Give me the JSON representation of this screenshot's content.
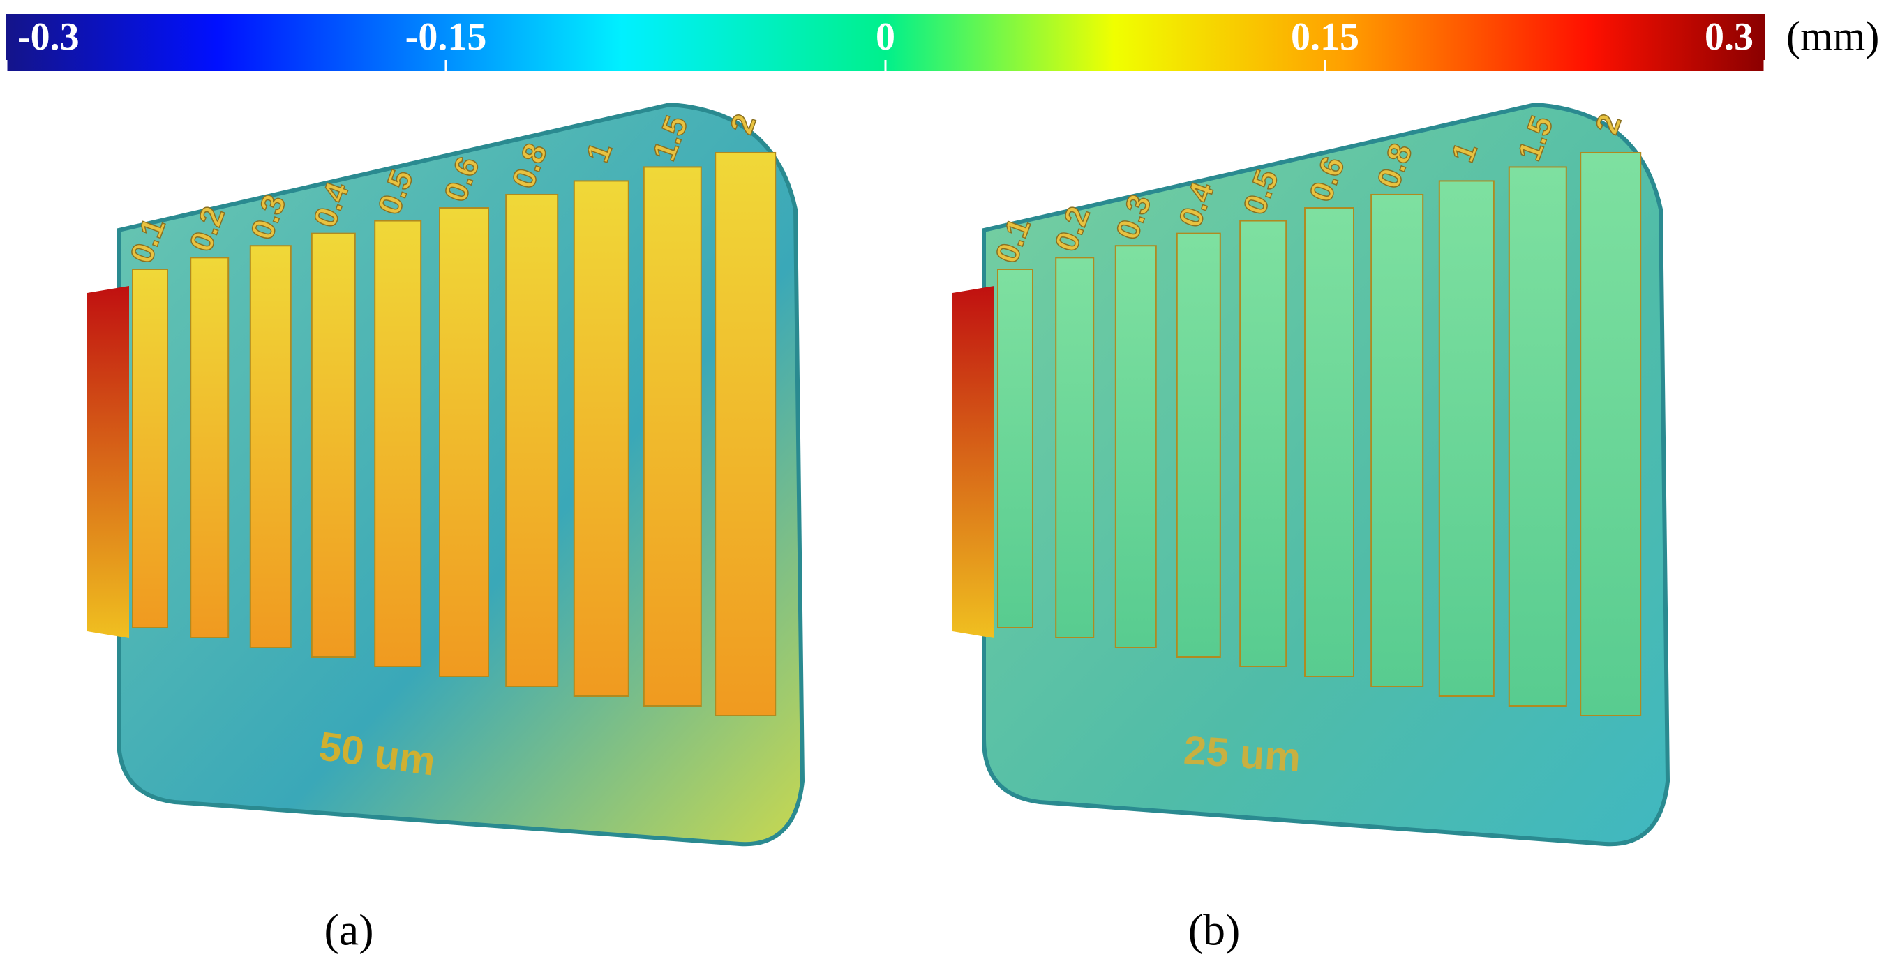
{
  "colorbar": {
    "ticks": [
      -0.3,
      -0.15,
      0,
      0.15,
      0.3
    ],
    "unit": "(mm)"
  },
  "panels": [
    {
      "label": "(a)",
      "caption": "50 um",
      "features": [
        "0.1",
        "0.2",
        "0.3",
        "0.4",
        "0.5",
        "0.6",
        "0.8",
        "1",
        "1.5",
        "2"
      ]
    },
    {
      "label": "(b)",
      "caption": "25 um",
      "features": [
        "0.1",
        "0.2",
        "0.3",
        "0.4",
        "0.5",
        "0.6",
        "0.8",
        "1",
        "1.5",
        "2"
      ]
    }
  ]
}
